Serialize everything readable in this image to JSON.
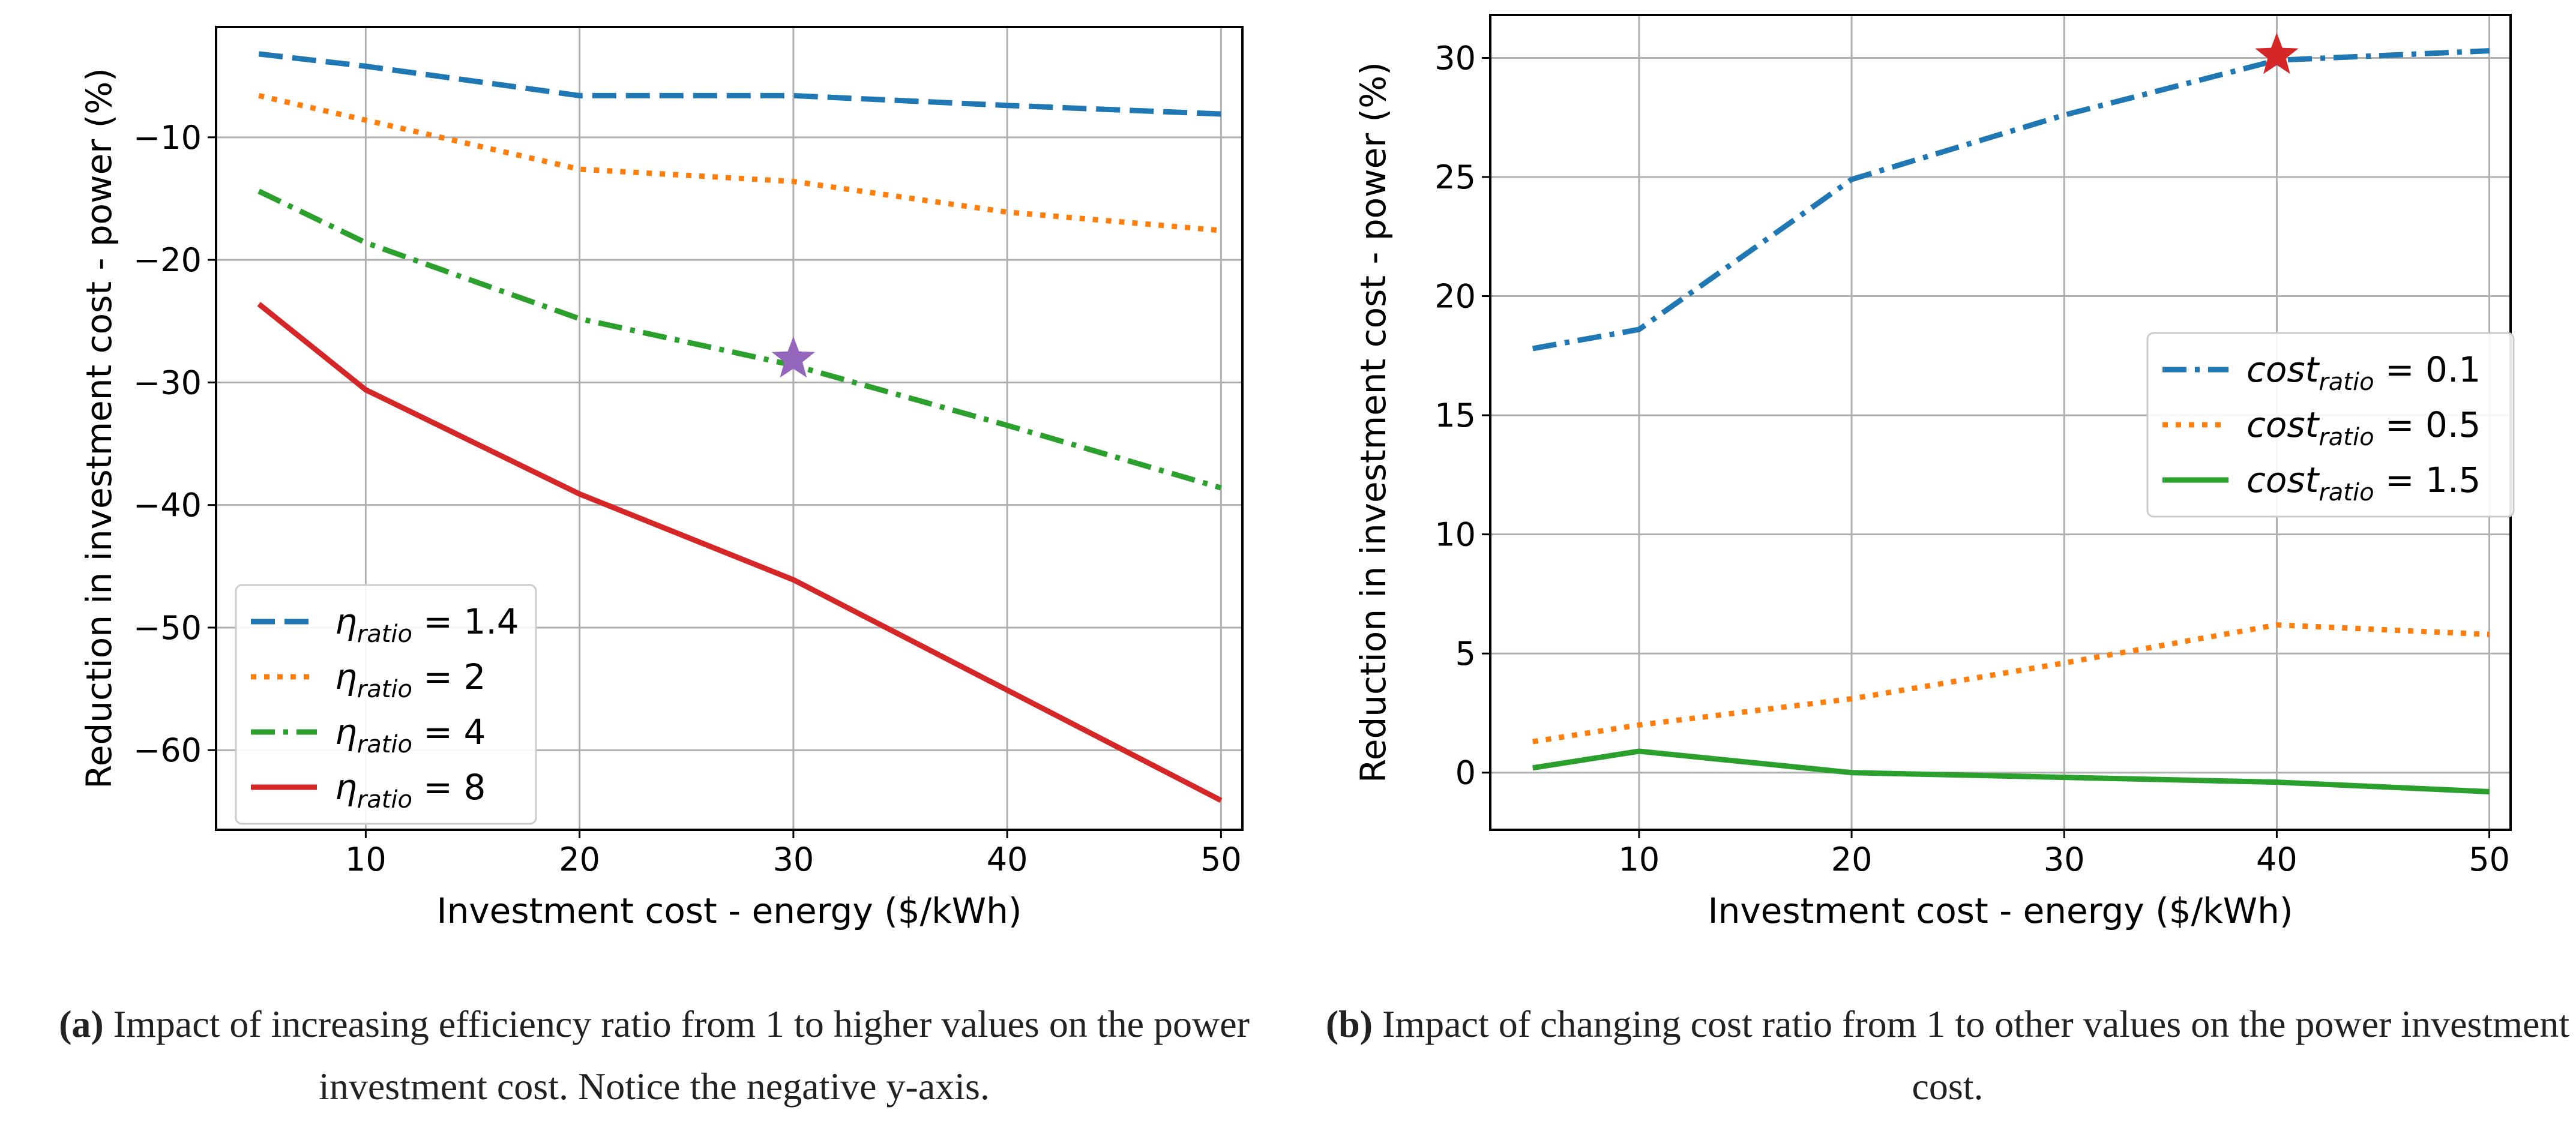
{
  "chart_data": [
    {
      "type": "line",
      "panel": "a",
      "xlabel": "Investment cost - energy ($/kWh)",
      "ylabel": "Reduction in investment cost - power (%)",
      "xlim": [
        3,
        51
      ],
      "ylim": [
        -66.5,
        -1
      ],
      "xticks": [
        10,
        20,
        30,
        40,
        50
      ],
      "yticks": [
        -60,
        -50,
        -40,
        -30,
        -20,
        -10
      ],
      "xticklabels": [
        "10",
        "20",
        "30",
        "40",
        "50"
      ],
      "yticklabels": [
        "−60",
        "−50",
        "−40",
        "−30",
        "−20",
        "−10"
      ],
      "grid": true,
      "legend_position": "lower-left",
      "legend_symbol": "η",
      "legend_sub": "ratio",
      "x": [
        5,
        10,
        20,
        30,
        40,
        50
      ],
      "series": [
        {
          "name": "1.4",
          "color": "#1f77b4",
          "dash": "dashed",
          "values": [
            -3.2,
            -4.2,
            -6.6,
            -6.6,
            -7.4,
            -8.1
          ]
        },
        {
          "name": "2",
          "color": "#ff7f0e",
          "dash": "dotted",
          "values": [
            -6.6,
            -8.6,
            -12.6,
            -13.6,
            -16.1,
            -17.6
          ]
        },
        {
          "name": "4",
          "color": "#2ca02c",
          "dash": "dashdot",
          "values": [
            -14.4,
            -18.6,
            -24.8,
            -28.6,
            -33.5,
            -38.6
          ]
        },
        {
          "name": "8",
          "color": "#d62728",
          "dash": "solid",
          "values": [
            -23.6,
            -30.6,
            -39.1,
            -46.1,
            -55.1,
            -64.1
          ]
        }
      ],
      "marker": {
        "x": 30,
        "y": -28.1,
        "color": "#9467bd",
        "shape": "star"
      }
    },
    {
      "type": "line",
      "panel": "b",
      "xlabel": "Investment cost - energy ($/kWh)",
      "ylabel": "Reduction in investment cost - power (%)",
      "xlim": [
        3,
        51
      ],
      "ylim": [
        -2.4,
        31.8
      ],
      "xticks": [
        10,
        20,
        30,
        40,
        50
      ],
      "yticks": [
        0,
        5,
        10,
        15,
        20,
        25,
        30
      ],
      "xticklabels": [
        "10",
        "20",
        "30",
        "40",
        "50"
      ],
      "yticklabels": [
        "0",
        "5",
        "10",
        "15",
        "20",
        "25",
        "30"
      ],
      "grid": true,
      "legend_position": "center-right",
      "legend_symbol": "cost",
      "legend_sub": "ratio",
      "x": [
        5,
        10,
        20,
        30,
        40,
        50
      ],
      "series": [
        {
          "name": "0.1",
          "color": "#1f77b4",
          "dash": "dashdot",
          "values": [
            17.8,
            18.6,
            24.9,
            27.6,
            29.9,
            30.3
          ]
        },
        {
          "name": "0.5",
          "color": "#ff7f0e",
          "dash": "dotted",
          "values": [
            1.3,
            2.0,
            3.1,
            4.6,
            6.2,
            5.8
          ]
        },
        {
          "name": "1.5",
          "color": "#2ca02c",
          "dash": "solid",
          "values": [
            0.2,
            0.9,
            0.0,
            -0.2,
            -0.4,
            -0.8
          ]
        }
      ],
      "marker": {
        "x": 40,
        "y": 30.1,
        "color": "#d62728",
        "shape": "star"
      }
    }
  ],
  "captions": {
    "a": {
      "label": "(a)",
      "text": " Impact of increasing efficiency ratio from 1 to higher values on the power investment cost. Notice the negative y-axis."
    },
    "b": {
      "label": "(b)",
      "text": " Impact of changing cost ratio from 1 to other values on the power investment cost."
    }
  }
}
